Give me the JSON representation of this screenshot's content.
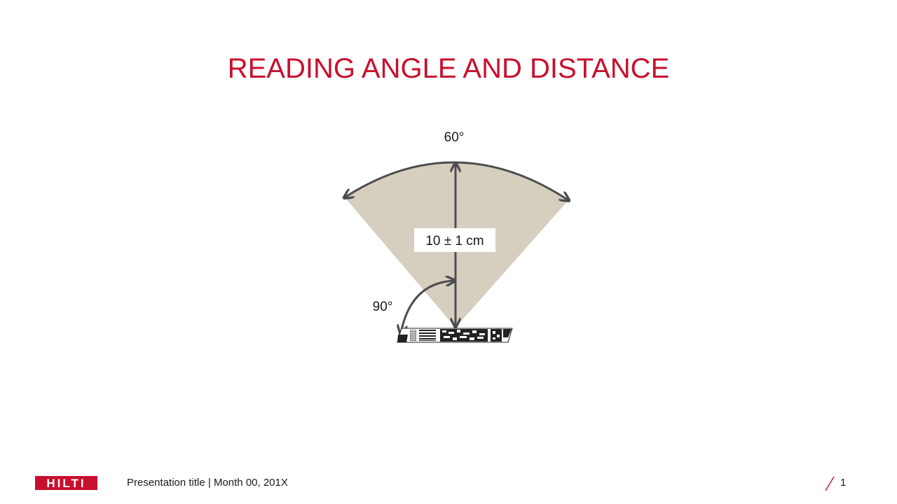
{
  "slide": {
    "title": "READING ANGLE AND DISTANCE"
  },
  "diagram": {
    "reading_angle_label": "60°",
    "distance_label": "10 ± 1 cm",
    "tilt_angle_label": "90°",
    "colors": {
      "cone_fill": "#d6cfc0",
      "arrow": "#4d4d4f",
      "accent": "#c8102e"
    }
  },
  "footer": {
    "logo_text": "HILTI",
    "presentation_info": "Presentation title | Month 00, 201X",
    "page_number": "1"
  }
}
